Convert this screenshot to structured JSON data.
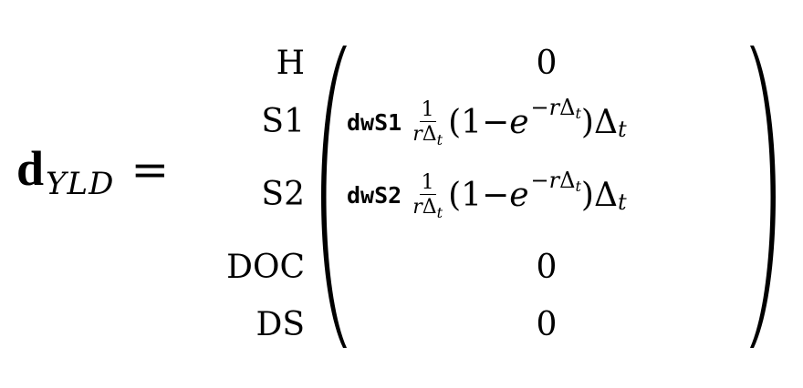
{
  "equation": {
    "lhs_symbol": "d",
    "lhs_subscript": "YLD",
    "equals": "="
  },
  "row_labels": [
    "H",
    "S1",
    "S2",
    "DOC",
    "DS"
  ],
  "entries": {
    "h": "0",
    "s1": {
      "param": "dwS1",
      "frac_num": "1",
      "frac_den_r": "r",
      "frac_den_delta": "Δ",
      "frac_den_sub": "t",
      "open": "(1−",
      "e": "e",
      "exp_neg": "−",
      "exp_r": "r",
      "exp_delta": "Δ",
      "exp_sub": "t",
      "close": ")",
      "delta": "Δ",
      "delta_sub": "t"
    },
    "s2": {
      "param": "dwS2",
      "frac_num": "1",
      "frac_den_r": "r",
      "frac_den_delta": "Δ",
      "frac_den_sub": "t",
      "open": "(1−",
      "e": "e",
      "exp_neg": "−",
      "exp_r": "r",
      "exp_delta": "Δ",
      "exp_sub": "t",
      "close": ")",
      "delta": "Δ",
      "delta_sub": "t"
    },
    "doc": "0",
    "ds": "0"
  }
}
